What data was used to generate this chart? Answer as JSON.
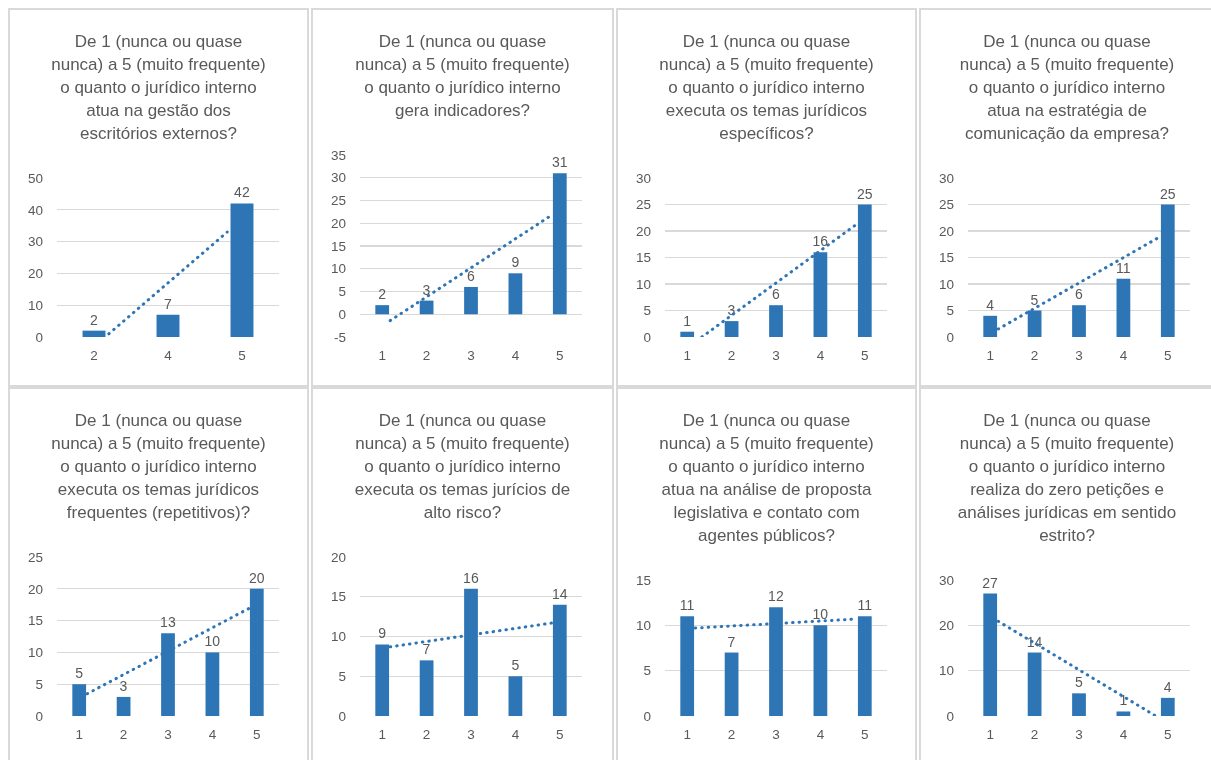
{
  "chart_data": [
    {
      "type": "bar",
      "title": "De 1 (nunca ou quase nunca) a 5 (muito frequente) o quanto o jurídico interno atua na gestão dos escritórios externos?",
      "categories": [
        "2",
        null,
        null,
        null,
        null,
        "4",
        null,
        null,
        null,
        null,
        "5"
      ],
      "ylim": [
        0,
        50
      ],
      "yticks": [
        0,
        10,
        20,
        30,
        40,
        50
      ],
      "grid": "y",
      "series": [
        {
          "color": "#2e75b6",
          "values": [
            2,
            null,
            null,
            null,
            null,
            7,
            null,
            null,
            null,
            null,
            42
          ],
          "value_labels": [
            "2",
            null,
            null,
            null,
            null,
            "7",
            null,
            null,
            null,
            null,
            "42"
          ]
        },
        {
          "type": "line",
          "color": "#2e75b6",
          "line_style": "dotted",
          "values": [
            null,
            1,
            5,
            9,
            13,
            17,
            21,
            25,
            29,
            33,
            null
          ]
        }
      ]
    },
    {
      "type": "bar",
      "title": "De 1 (nunca ou quase nunca) a 5 (muito frequente) o quanto o jurídico interno gera indicadores?",
      "x": [
        1,
        2,
        3,
        4,
        5
      ],
      "xlim": [
        0.5,
        5.5
      ],
      "xticks": [
        1,
        2,
        3,
        4,
        5
      ],
      "ylim": [
        -5,
        35
      ],
      "yticks": [
        -5,
        0,
        5,
        10,
        15,
        20,
        25,
        30,
        35
      ],
      "grid": "y",
      "series": [
        {
          "color": "#2e75b6",
          "values": [
            2,
            3,
            6,
            9,
            31
          ],
          "value_labels": [
            "2",
            "3",
            "6",
            "9",
            "31"
          ]
        },
        {
          "type": "line",
          "color": "#2e75b6",
          "line_style": "dotted",
          "x": [
            1.18,
            4.82
          ],
          "values": [
            -1.4,
            21.8
          ]
        }
      ]
    },
    {
      "type": "bar",
      "title": "De 1 (nunca ou quase nunca) a 5 (muito frequente) o quanto o jurídico interno executa os temas jurídicos específicos?",
      "x": [
        1,
        2,
        3,
        4,
        5
      ],
      "xlim": [
        0.5,
        5.5
      ],
      "xticks": [
        1,
        2,
        3,
        4,
        5
      ],
      "ylim": [
        0,
        30
      ],
      "yticks": [
        0,
        5,
        10,
        15,
        20,
        25,
        30
      ],
      "grid": "y",
      "series": [
        {
          "color": "#2e75b6",
          "values": [
            1,
            3,
            6,
            16,
            25
          ],
          "value_labels": [
            "1",
            "3",
            "6",
            "16",
            "25"
          ]
        },
        {
          "type": "line",
          "color": "#2e75b6",
          "line_style": "dotted",
          "x": [
            1.33,
            4.82
          ],
          "values": [
            0,
            21.3
          ]
        }
      ]
    },
    {
      "type": "bar",
      "title": "De 1 (nunca ou quase nunca) a 5 (muito frequente) o quanto o jurídico interno atua na estratégia de comunicação da empresa?",
      "x": [
        1,
        2,
        3,
        4,
        5
      ],
      "xlim": [
        0.5,
        5.5
      ],
      "xticks": [
        1,
        2,
        3,
        4,
        5
      ],
      "ylim": [
        0,
        30
      ],
      "yticks": [
        0,
        5,
        10,
        15,
        20,
        25,
        30
      ],
      "grid": "y",
      "series": [
        {
          "color": "#2e75b6",
          "values": [
            4,
            5,
            6,
            11,
            25
          ],
          "value_labels": [
            "4",
            "5",
            "6",
            "11",
            "25"
          ]
        },
        {
          "type": "line",
          "color": "#2e75b6",
          "line_style": "dotted",
          "x": [
            1.18,
            4.82
          ],
          "values": [
            1.5,
            18.9
          ]
        }
      ]
    },
    {
      "type": "bar",
      "title": "De 1 (nunca ou quase nunca) a 5 (muito frequente) o quanto o jurídico interno executa os temas jurídicos frequentes (repetitivos)?",
      "x": [
        1,
        2,
        3,
        4,
        5
      ],
      "xlim": [
        0.5,
        5.5
      ],
      "xticks": [
        1,
        2,
        3,
        4,
        5
      ],
      "ylim": [
        0,
        25
      ],
      "yticks": [
        0,
        5,
        10,
        15,
        20,
        25
      ],
      "grid": "y",
      "series": [
        {
          "color": "#2e75b6",
          "values": [
            5,
            3,
            13,
            10,
            20
          ],
          "value_labels": [
            "5",
            "3",
            "13",
            "10",
            "20"
          ]
        },
        {
          "type": "line",
          "color": "#2e75b6",
          "line_style": "dotted",
          "x": [
            1.18,
            4.82
          ],
          "values": [
            3.5,
            16.9
          ]
        }
      ]
    },
    {
      "type": "bar",
      "title": "De 1 (nunca ou quase nunca) a 5 (muito frequente) o quanto o jurídico interno executa os temas jurícios de alto risco?",
      "x": [
        1,
        2,
        3,
        4,
        5
      ],
      "xlim": [
        0.5,
        5.5
      ],
      "xticks": [
        1,
        2,
        3,
        4,
        5
      ],
      "ylim": [
        0,
        20
      ],
      "yticks": [
        0,
        5,
        10,
        15,
        20
      ],
      "grid": "y",
      "series": [
        {
          "color": "#2e75b6",
          "values": [
            9,
            7,
            16,
            5,
            14
          ],
          "value_labels": [
            "9",
            "7",
            "16",
            "5",
            "14"
          ]
        },
        {
          "type": "line",
          "color": "#2e75b6",
          "line_style": "dotted",
          "x": [
            1.18,
            4.82
          ],
          "values": [
            8.7,
            11.7
          ]
        }
      ]
    },
    {
      "type": "bar",
      "title": "De 1 (nunca ou quase nunca) a 5 (muito frequente) o quanto o jurídico interno atua na análise de proposta legislativa e contato com agentes públicos?",
      "x": [
        1,
        2,
        3,
        4,
        5
      ],
      "xlim": [
        0.5,
        5.5
      ],
      "xticks": [
        1,
        2,
        3,
        4,
        5
      ],
      "ylim": [
        0,
        15
      ],
      "yticks": [
        0,
        5,
        10,
        15
      ],
      "grid": "y",
      "series": [
        {
          "color": "#2e75b6",
          "values": [
            11,
            7,
            12,
            10,
            11
          ],
          "value_labels": [
            "11",
            "7",
            "12",
            "10",
            "11"
          ]
        },
        {
          "type": "line",
          "color": "#2e75b6",
          "line_style": "dotted",
          "x": [
            1.18,
            4.82
          ],
          "values": [
            9.7,
            10.7
          ]
        }
      ]
    },
    {
      "type": "bar",
      "title": "De 1 (nunca ou quase nunca) a 5 (muito frequente) o quanto o jurídico interno realiza do zero petições e análises jurídicas em sentido estrito?",
      "x": [
        1,
        2,
        3,
        4,
        5
      ],
      "xlim": [
        0.5,
        5.5
      ],
      "xticks": [
        1,
        2,
        3,
        4,
        5
      ],
      "ylim": [
        0,
        30
      ],
      "yticks": [
        0,
        10,
        20,
        30
      ],
      "grid": "y",
      "series": [
        {
          "color": "#2e75b6",
          "values": [
            27,
            14,
            5,
            1,
            4
          ],
          "value_labels": [
            "27",
            "14",
            "5",
            "1",
            "4"
          ]
        },
        {
          "type": "line",
          "color": "#2e75b6",
          "line_style": "dotted",
          "x": [
            1.18,
            4.73
          ],
          "values": [
            20.9,
            0
          ]
        }
      ]
    }
  ]
}
